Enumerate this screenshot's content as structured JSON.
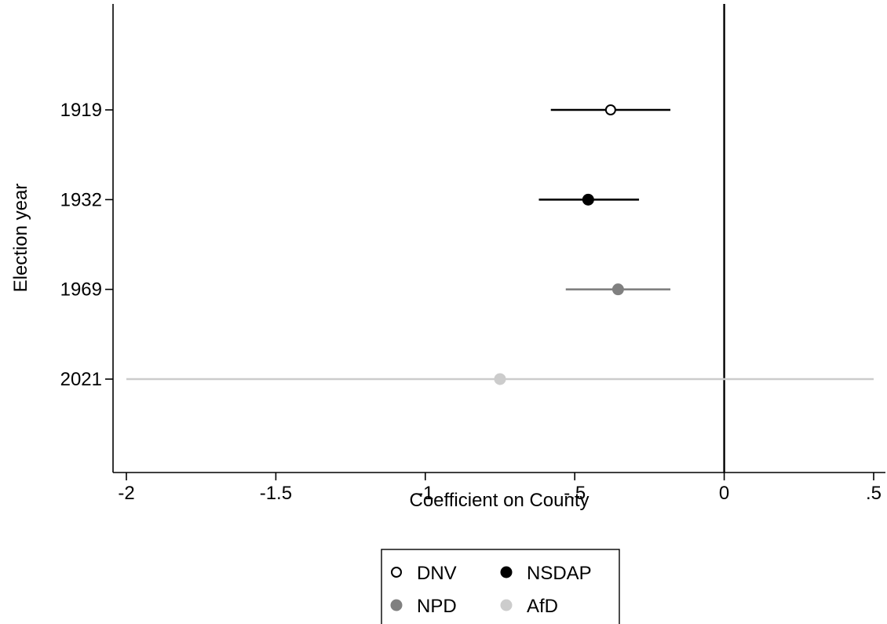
{
  "chart_data": {
    "type": "scatter",
    "subtype": "coefficient-plot",
    "title": "",
    "xlabel": "Coefficient on County",
    "ylabel": "Election year",
    "xlim": [
      -2.02,
      0.54
    ],
    "xticks": [
      {
        "value": -2,
        "label": "-2"
      },
      {
        "value": -1.5,
        "label": "-1.5"
      },
      {
        "value": -1,
        "label": "-1"
      },
      {
        "value": -0.5,
        "label": "-.5"
      },
      {
        "value": 0,
        "label": "0"
      },
      {
        "value": 0.5,
        "label": ".5"
      }
    ],
    "categories": [
      "1919",
      "1932",
      "1969",
      "2021"
    ],
    "reference_line": {
      "x": 0
    },
    "grid": false,
    "legend_position": "bottom",
    "series": [
      {
        "name": "DNV",
        "category": "1919",
        "estimate": -0.38,
        "ci_low": -0.58,
        "ci_high": -0.18,
        "color": "#000000",
        "marker": "hollow-circle"
      },
      {
        "name": "NSDAP",
        "category": "1932",
        "estimate": -0.455,
        "ci_low": -0.62,
        "ci_high": -0.285,
        "color": "#000000",
        "marker": "filled-circle"
      },
      {
        "name": "NPD",
        "category": "1969",
        "estimate": -0.355,
        "ci_low": -0.53,
        "ci_high": -0.18,
        "color": "#808080",
        "marker": "filled-circle"
      },
      {
        "name": "AfD",
        "category": "2021",
        "estimate": -0.75,
        "ci_low": -2.0,
        "ci_high": 0.5,
        "color": "#cccccc",
        "marker": "filled-circle"
      }
    ]
  }
}
